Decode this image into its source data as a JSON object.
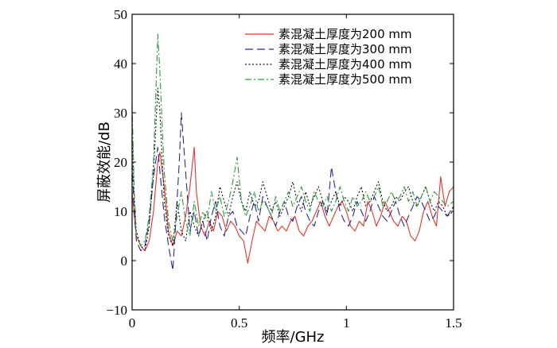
{
  "chart_data": {
    "type": "line",
    "xlabel": "频率/GHz",
    "ylabel": "屏蔽效能/dB",
    "xlim": [
      0,
      1.5
    ],
    "ylim": [
      -10,
      50
    ],
    "xticks": [
      {
        "value": 0,
        "label": "0"
      },
      {
        "value": 0.5,
        "label": "0.5"
      },
      {
        "value": 1,
        "label": "1"
      },
      {
        "value": 1.5,
        "label": "1.5"
      }
    ],
    "yticks": [
      {
        "value": -10,
        "label": "−10"
      },
      {
        "value": 0,
        "label": "0"
      },
      {
        "value": 10,
        "label": "10"
      },
      {
        "value": 20,
        "label": "20"
      },
      {
        "value": 30,
        "label": "30"
      },
      {
        "value": 40,
        "label": "40"
      },
      {
        "value": 50,
        "label": "50"
      }
    ],
    "grid": false,
    "legend_position": "top-right",
    "series": [
      {
        "name": "素混凝土厚度为200 mm",
        "color": "#e8322d",
        "dash": "solid",
        "x": [
          0,
          0.01,
          0.02,
          0.04,
          0.06,
          0.08,
          0.1,
          0.12,
          0.13,
          0.15,
          0.17,
          0.19,
          0.21,
          0.23,
          0.25,
          0.27,
          0.29,
          0.3,
          0.32,
          0.34,
          0.36,
          0.38,
          0.4,
          0.42,
          0.44,
          0.46,
          0.48,
          0.5,
          0.52,
          0.54,
          0.56,
          0.58,
          0.6,
          0.62,
          0.64,
          0.66,
          0.68,
          0.7,
          0.72,
          0.74,
          0.76,
          0.78,
          0.8,
          0.82,
          0.84,
          0.86,
          0.88,
          0.9,
          0.92,
          0.94,
          0.96,
          0.98,
          1.0,
          1.02,
          1.04,
          1.06,
          1.08,
          1.1,
          1.12,
          1.14,
          1.16,
          1.18,
          1.2,
          1.22,
          1.24,
          1.26,
          1.28,
          1.3,
          1.32,
          1.34,
          1.36,
          1.38,
          1.4,
          1.42,
          1.44,
          1.46,
          1.48,
          1.5
        ],
        "y": [
          14,
          9,
          5,
          3,
          2,
          4,
          10,
          20,
          22,
          15,
          6,
          3,
          6,
          5,
          9,
          15,
          23,
          14,
          7,
          5,
          8,
          6,
          10,
          9,
          6,
          8,
          7,
          5,
          4,
          -0.5,
          4,
          8,
          7,
          6,
          9,
          8,
          6,
          7,
          6,
          8,
          9,
          6,
          5,
          7,
          8,
          10,
          12,
          9,
          7,
          9,
          11,
          12,
          10,
          7,
          6,
          8,
          7,
          12,
          10,
          7,
          9,
          12,
          10,
          8,
          7,
          9,
          8,
          5,
          4,
          6,
          10,
          12,
          9,
          7,
          17,
          11,
          14,
          15
        ]
      },
      {
        "name": "素混凝土厚度为300 mm",
        "color": "#2b2b8c",
        "dash": "longdash",
        "x": [
          0,
          0.01,
          0.02,
          0.04,
          0.06,
          0.08,
          0.1,
          0.12,
          0.13,
          0.15,
          0.17,
          0.19,
          0.2,
          0.22,
          0.23,
          0.25,
          0.27,
          0.29,
          0.31,
          0.33,
          0.35,
          0.37,
          0.39,
          0.41,
          0.43,
          0.45,
          0.47,
          0.49,
          0.51,
          0.53,
          0.55,
          0.57,
          0.59,
          0.61,
          0.63,
          0.65,
          0.67,
          0.69,
          0.71,
          0.73,
          0.75,
          0.77,
          0.79,
          0.81,
          0.83,
          0.85,
          0.87,
          0.89,
          0.91,
          0.93,
          0.95,
          0.97,
          0.99,
          1.01,
          1.03,
          1.05,
          1.07,
          1.09,
          1.11,
          1.13,
          1.15,
          1.17,
          1.19,
          1.21,
          1.23,
          1.25,
          1.27,
          1.29,
          1.31,
          1.33,
          1.35,
          1.37,
          1.39,
          1.41,
          1.43,
          1.45,
          1.47,
          1.5
        ],
        "y": [
          20,
          10,
          4,
          2,
          3,
          8,
          17,
          23,
          18,
          9,
          3,
          -2,
          5,
          20,
          30,
          18,
          6,
          10,
          5,
          8,
          4,
          9,
          12,
          7,
          5,
          9,
          10,
          7,
          6,
          5,
          9,
          12,
          8,
          13,
          11,
          9,
          7,
          10,
          12,
          9,
          8,
          11,
          13,
          10,
          8,
          7,
          10,
          12,
          9,
          19,
          14,
          10,
          8,
          7,
          9,
          12,
          10,
          8,
          10,
          13,
          11,
          9,
          8,
          10,
          12,
          9,
          7,
          9,
          11,
          13,
          12,
          10,
          8,
          9,
          11,
          10,
          9,
          11
        ]
      },
      {
        "name": "素混凝土厚度为400 mm",
        "color": "#111111",
        "dash": "dotted",
        "x": [
          0,
          0.01,
          0.02,
          0.04,
          0.06,
          0.08,
          0.1,
          0.12,
          0.13,
          0.15,
          0.17,
          0.19,
          0.21,
          0.23,
          0.25,
          0.27,
          0.29,
          0.31,
          0.33,
          0.35,
          0.37,
          0.39,
          0.41,
          0.43,
          0.45,
          0.47,
          0.49,
          0.51,
          0.53,
          0.55,
          0.57,
          0.59,
          0.61,
          0.63,
          0.65,
          0.67,
          0.69,
          0.71,
          0.73,
          0.75,
          0.77,
          0.79,
          0.81,
          0.83,
          0.85,
          0.87,
          0.89,
          0.91,
          0.93,
          0.95,
          0.97,
          0.99,
          1.01,
          1.03,
          1.05,
          1.07,
          1.09,
          1.11,
          1.13,
          1.15,
          1.17,
          1.19,
          1.21,
          1.23,
          1.25,
          1.27,
          1.29,
          1.31,
          1.33,
          1.35,
          1.37,
          1.39,
          1.41,
          1.43,
          1.45,
          1.47,
          1.5
        ],
        "y": [
          28,
          12,
          6,
          3,
          2,
          7,
          18,
          35,
          30,
          12,
          5,
          3,
          12,
          6,
          4,
          10,
          7,
          5,
          8,
          10,
          6,
          9,
          15,
          12,
          9,
          13,
          16,
          12,
          10,
          14,
          11,
          12,
          16,
          13,
          10,
          12,
          9,
          11,
          13,
          16,
          12,
          10,
          14,
          11,
          13,
          15,
          12,
          10,
          12,
          14,
          11,
          13,
          12,
          10,
          13,
          15,
          11,
          12,
          14,
          16,
          12,
          10,
          11,
          13,
          12,
          14,
          15,
          12,
          11,
          13,
          15,
          12,
          10,
          12,
          11,
          9,
          10
        ]
      },
      {
        "name": "素混凝土厚度为500 mm",
        "color": "#2f9a3a",
        "dash": "dashdot",
        "x": [
          0,
          0.01,
          0.02,
          0.04,
          0.06,
          0.08,
          0.1,
          0.12,
          0.13,
          0.15,
          0.17,
          0.19,
          0.21,
          0.23,
          0.25,
          0.27,
          0.29,
          0.31,
          0.33,
          0.35,
          0.37,
          0.39,
          0.41,
          0.43,
          0.45,
          0.47,
          0.49,
          0.51,
          0.53,
          0.55,
          0.57,
          0.59,
          0.61,
          0.63,
          0.65,
          0.67,
          0.69,
          0.71,
          0.73,
          0.75,
          0.77,
          0.79,
          0.81,
          0.83,
          0.85,
          0.87,
          0.89,
          0.91,
          0.93,
          0.95,
          0.97,
          0.99,
          1.01,
          1.03,
          1.05,
          1.07,
          1.09,
          1.11,
          1.13,
          1.15,
          1.17,
          1.19,
          1.21,
          1.23,
          1.25,
          1.27,
          1.29,
          1.31,
          1.33,
          1.35,
          1.37,
          1.39,
          1.41,
          1.43,
          1.45,
          1.47,
          1.5
        ],
        "y": [
          32,
          14,
          5,
          3,
          4,
          9,
          20,
          46,
          38,
          18,
          8,
          4,
          9,
          14,
          8,
          5,
          12,
          7,
          10,
          8,
          14,
          10,
          13,
          9,
          12,
          16,
          21,
          12,
          9,
          11,
          14,
          10,
          12,
          11,
          9,
          13,
          10,
          12,
          14,
          11,
          13,
          15,
          12,
          10,
          14,
          12,
          11,
          13,
          10,
          12,
          15,
          12,
          10,
          13,
          11,
          12,
          14,
          12,
          13,
          15,
          11,
          12,
          14,
          12,
          13,
          15,
          12,
          14,
          11,
          13,
          15,
          12,
          14,
          13,
          12,
          11,
          12
        ]
      }
    ]
  }
}
